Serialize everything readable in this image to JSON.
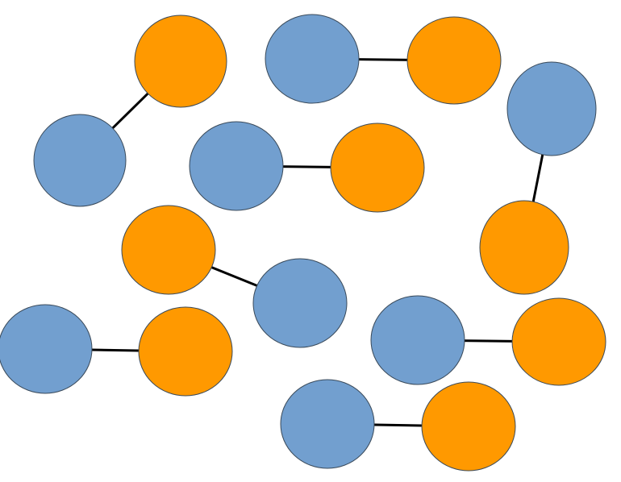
{
  "palette": {
    "blue": "#729FCF",
    "orange": "#FF9900",
    "bond": "#000000",
    "outline": "#3a4a5a"
  },
  "pairs": [
    {
      "id": "pair-1",
      "members": [
        "blue",
        "orange"
      ]
    },
    {
      "id": "pair-2",
      "members": [
        "blue",
        "orange"
      ]
    },
    {
      "id": "pair-3",
      "members": [
        "blue",
        "orange"
      ]
    },
    {
      "id": "pair-4",
      "members": [
        "blue",
        "orange"
      ]
    },
    {
      "id": "pair-5",
      "members": [
        "orange",
        "blue"
      ]
    },
    {
      "id": "pair-6",
      "members": [
        "blue",
        "orange"
      ]
    },
    {
      "id": "pair-7",
      "members": [
        "blue",
        "orange"
      ]
    },
    {
      "id": "pair-8",
      "members": [
        "blue",
        "orange"
      ]
    },
    {
      "id": "pair-9",
      "members": [
        "blue",
        "orange"
      ]
    }
  ]
}
